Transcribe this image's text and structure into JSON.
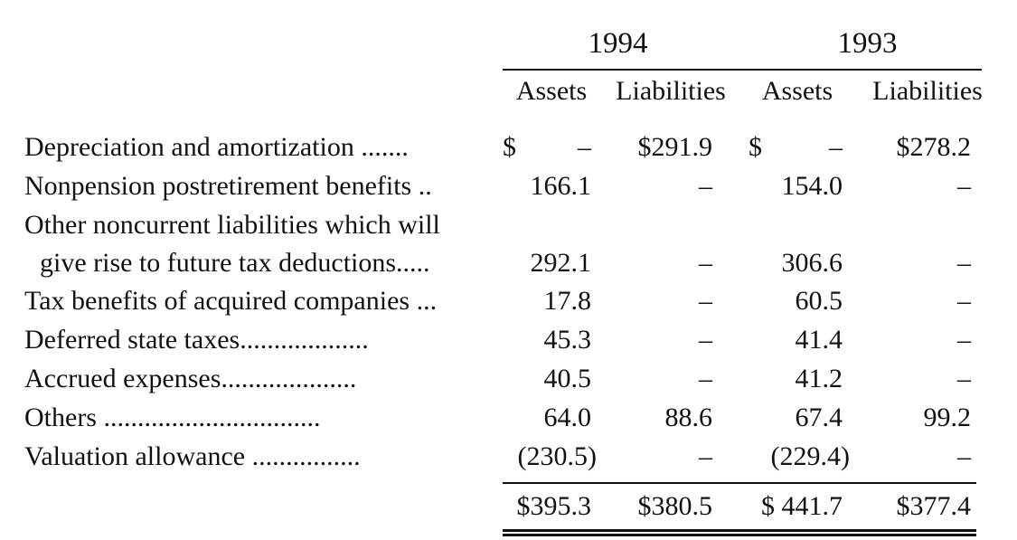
{
  "header": {
    "years": [
      "1994",
      "1993"
    ],
    "columns": [
      "Assets",
      "Liabilities",
      "Assets",
      "Liabilities"
    ]
  },
  "rows": [
    {
      "label_lines": [
        "Depreciation and amortization ......."
      ],
      "cells": [
        "–",
        "$291.9",
        "–",
        "$278.2"
      ],
      "dollar_marks": [
        "$",
        "$"
      ]
    },
    {
      "label_lines": [
        "Nonpension postretirement benefits .."
      ],
      "cells": [
        "166.1",
        "–",
        "154.0",
        "–"
      ]
    },
    {
      "label_lines": [
        "Other noncurrent liabilities which will",
        "give rise to future tax deductions....."
      ],
      "cells": [
        "292.1",
        "–",
        "306.6",
        "–"
      ]
    },
    {
      "label_lines": [
        "Tax benefits of acquired companies ..."
      ],
      "cells": [
        "17.8",
        "–",
        "60.5",
        "–"
      ]
    },
    {
      "label_lines": [
        "Deferred state taxes..................."
      ],
      "cells": [
        "45.3",
        "–",
        "41.4",
        "–"
      ]
    },
    {
      "label_lines": [
        "Accrued expenses...................."
      ],
      "cells": [
        "40.5",
        "–",
        "41.2",
        "–"
      ]
    },
    {
      "label_lines": [
        "Others ................................"
      ],
      "cells": [
        "64.0",
        "88.6",
        "67.4",
        "99.2"
      ]
    },
    {
      "label_lines": [
        "Valuation allowance ................"
      ],
      "cells": [
        "(230.5)",
        "–",
        "(229.4)",
        "–"
      ]
    }
  ],
  "totals": [
    "$395.3",
    "$380.5",
    "$ 441.7",
    "$377.4"
  ]
}
